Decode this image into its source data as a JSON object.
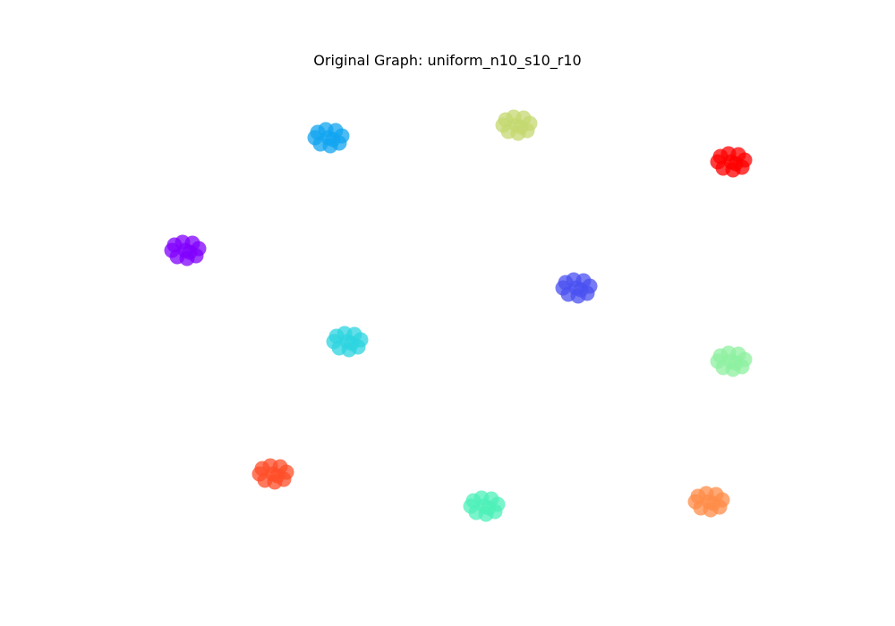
{
  "figure": {
    "title": "Original Graph: uniform_n10_s10_r10"
  },
  "graph": {
    "nodes_per_cluster": 10,
    "node_opacity": 0.75,
    "clusters": [
      {
        "id": "c0",
        "color": "#8000ff"
      },
      {
        "id": "c1",
        "color": "#12a4f0"
      },
      {
        "id": "c2",
        "color": "#2cd4e0"
      },
      {
        "id": "c3",
        "color": "#4a50f0"
      },
      {
        "id": "c4",
        "color": "#4ef0b8"
      },
      {
        "id": "c5",
        "color": "#8ef0a0"
      },
      {
        "id": "c6",
        "color": "#c4d870"
      },
      {
        "id": "c7",
        "color": "#ff8c48"
      },
      {
        "id": "c8",
        "color": "#ff4e28"
      },
      {
        "id": "c9",
        "color": "#ff0000"
      }
    ]
  }
}
